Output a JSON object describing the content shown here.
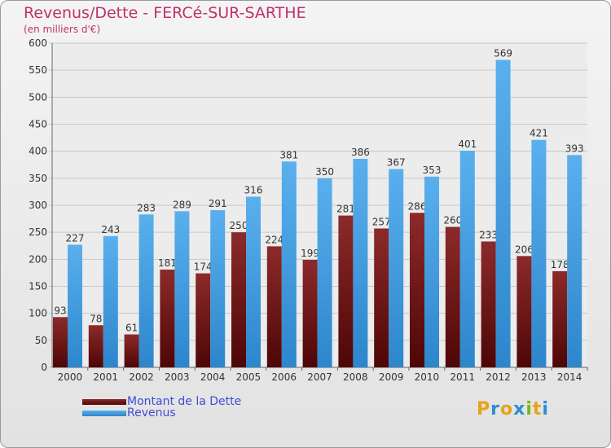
{
  "title": "Revenus/Dette - FERCé-SUR-SARTHE",
  "subtitle": "(en milliers d'€)",
  "logo": {
    "letters": [
      {
        "ch": "P",
        "color": "#e8a21a"
      },
      {
        "ch": "r",
        "color": "#2a8fd0"
      },
      {
        "ch": "o",
        "color": "#e8a21a"
      },
      {
        "ch": "x",
        "color": "#2a8fd0"
      },
      {
        "ch": "i",
        "color": "#7ab51d"
      },
      {
        "ch": "t",
        "color": "#e8a21a"
      },
      {
        "ch": "i",
        "color": "#2a8fd0"
      }
    ]
  },
  "chart_data": {
    "type": "bar",
    "categories": [
      "2000",
      "2001",
      "2002",
      "2003",
      "2004",
      "2005",
      "2006",
      "2007",
      "2008",
      "2009",
      "2010",
      "2011",
      "2012",
      "2013",
      "2014"
    ],
    "series": [
      {
        "name": "Montant de la Dette",
        "color": "#7a1818",
        "values": [
          93,
          78,
          61,
          181,
          174,
          250,
          224,
          199,
          281,
          257,
          286,
          260,
          233,
          206,
          178
        ]
      },
      {
        "name": "Revenus",
        "color": "#3b9ce0",
        "values": [
          227,
          243,
          283,
          289,
          291,
          316,
          381,
          350,
          386,
          367,
          353,
          401,
          569,
          421,
          393
        ]
      }
    ],
    "ylim": [
      0,
      600
    ],
    "yticks": [
      0,
      50,
      100,
      150,
      200,
      250,
      300,
      350,
      400,
      450,
      500,
      550,
      600
    ],
    "grid": true,
    "legend_position": "bottom-left"
  }
}
